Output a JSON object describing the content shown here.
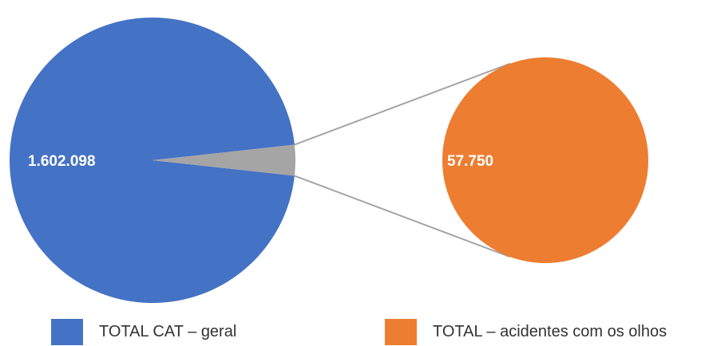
{
  "chart_data": {
    "type": "pie",
    "subtype": "pie-of-pie",
    "title": "",
    "slices": [
      {
        "name": "TOTAL CAT – geral",
        "value": 1602098,
        "label": "1.602.098",
        "color": "#4472C4"
      },
      {
        "name": "TOTAL – acidentes com os olhos",
        "value": 57750,
        "label": "57.750",
        "color": "#ED7D31"
      }
    ],
    "connector_color": "#A5A5A5",
    "legend": {
      "position": "bottom",
      "entries": [
        {
          "label": "TOTAL CAT – geral",
          "color": "#4472C4"
        },
        {
          "label": "TOTAL – acidentes com os olhos",
          "color": "#ED7D31"
        }
      ]
    }
  }
}
